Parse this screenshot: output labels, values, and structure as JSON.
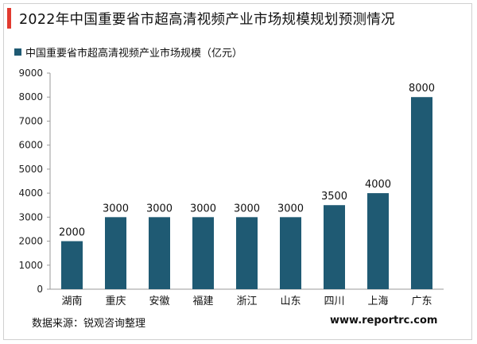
{
  "title": "2022年中国重要省市超高清视频产业市场规模规划预测情况",
  "source": "数据来源：锐观咨询整理",
  "website": "www.reportrc.com",
  "colors": {
    "bar": "#1f5a73",
    "accent": "#e23a2f"
  },
  "chart_data": {
    "type": "bar",
    "categories": [
      "湖南",
      "重庆",
      "安徽",
      "福建",
      "浙江",
      "山东",
      "四川",
      "上海",
      "广东"
    ],
    "series": [
      {
        "name": "中国重要省市超高清视频产业市场规模（亿元）",
        "values": [
          2000,
          3000,
          3000,
          3000,
          3000,
          3000,
          3500,
          4000,
          8000
        ]
      }
    ],
    "ylim": [
      0,
      9000
    ],
    "yticks": [
      0,
      1000,
      2000,
      3000,
      4000,
      5000,
      6000,
      7000,
      8000,
      9000
    ],
    "grid": false,
    "legend": "top-left"
  }
}
